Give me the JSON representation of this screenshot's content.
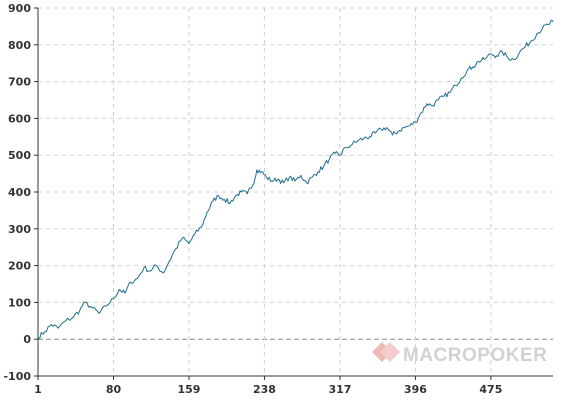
{
  "chart_data": {
    "type": "line",
    "title": "",
    "xlabel": "",
    "ylabel": "",
    "xlim": [
      1,
      540
    ],
    "ylim": [
      -100,
      900
    ],
    "x_ticks": [
      "1",
      "80",
      "159",
      "238",
      "317",
      "396",
      "475"
    ],
    "x_tick_values": [
      1,
      80,
      159,
      238,
      317,
      396,
      475
    ],
    "y_ticks": [
      "900",
      "800",
      "700",
      "600",
      "500",
      "400",
      "300",
      "200",
      "100",
      "0",
      "-100"
    ],
    "y_tick_values": [
      900,
      800,
      700,
      600,
      500,
      400,
      300,
      200,
      100,
      0,
      -100
    ],
    "grid": true,
    "legend": "none",
    "series": [
      {
        "color": "#1f6e8c",
        "points": [
          [
            1,
            5
          ],
          [
            8,
            20
          ],
          [
            15,
            40
          ],
          [
            22,
            30
          ],
          [
            30,
            50
          ],
          [
            38,
            60
          ],
          [
            45,
            80
          ],
          [
            50,
            100
          ],
          [
            58,
            85
          ],
          [
            65,
            70
          ],
          [
            72,
            90
          ],
          [
            80,
            110
          ],
          [
            86,
            135
          ],
          [
            92,
            125
          ],
          [
            98,
            155
          ],
          [
            105,
            165
          ],
          [
            112,
            195
          ],
          [
            118,
            185
          ],
          [
            125,
            200
          ],
          [
            132,
            180
          ],
          [
            138,
            210
          ],
          [
            145,
            245
          ],
          [
            152,
            275
          ],
          [
            159,
            260
          ],
          [
            165,
            285
          ],
          [
            172,
            305
          ],
          [
            178,
            345
          ],
          [
            184,
            375
          ],
          [
            190,
            390
          ],
          [
            196,
            380
          ],
          [
            202,
            370
          ],
          [
            208,
            390
          ],
          [
            214,
            400
          ],
          [
            220,
            395
          ],
          [
            226,
            420
          ],
          [
            230,
            460
          ],
          [
            235,
            455
          ],
          [
            240,
            440
          ],
          [
            246,
            430
          ],
          [
            252,
            435
          ],
          [
            258,
            425
          ],
          [
            264,
            440
          ],
          [
            270,
            430
          ],
          [
            276,
            445
          ],
          [
            282,
            425
          ],
          [
            288,
            440
          ],
          [
            294,
            455
          ],
          [
            300,
            470
          ],
          [
            306,
            490
          ],
          [
            312,
            505
          ],
          [
            317,
            500
          ],
          [
            323,
            520
          ],
          [
            330,
            530
          ],
          [
            336,
            540
          ],
          [
            342,
            545
          ],
          [
            348,
            550
          ],
          [
            354,
            560
          ],
          [
            360,
            570
          ],
          [
            366,
            575
          ],
          [
            372,
            555
          ],
          [
            378,
            565
          ],
          [
            384,
            575
          ],
          [
            390,
            580
          ],
          [
            396,
            590
          ],
          [
            402,
            615
          ],
          [
            408,
            640
          ],
          [
            414,
            635
          ],
          [
            420,
            650
          ],
          [
            426,
            660
          ],
          [
            432,
            670
          ],
          [
            438,
            690
          ],
          [
            444,
            710
          ],
          [
            450,
            730
          ],
          [
            456,
            740
          ],
          [
            462,
            755
          ],
          [
            468,
            760
          ],
          [
            475,
            775
          ],
          [
            481,
            770
          ],
          [
            487,
            780
          ],
          [
            493,
            765
          ],
          [
            499,
            760
          ],
          [
            505,
            780
          ],
          [
            511,
            795
          ],
          [
            517,
            810
          ],
          [
            523,
            830
          ],
          [
            529,
            845
          ],
          [
            535,
            855
          ],
          [
            540,
            862
          ]
        ]
      }
    ],
    "colors": {
      "line": "#1f6e8c",
      "grid": "#d0d0d0",
      "axis": "#333333",
      "zero_line": "#888888",
      "watermark_mark": "#f2b8b8",
      "watermark_text": "#d2d2d2"
    }
  },
  "watermark": {
    "text": "MACROPOKER",
    "mark_icon": "diamond-logo-icon"
  }
}
